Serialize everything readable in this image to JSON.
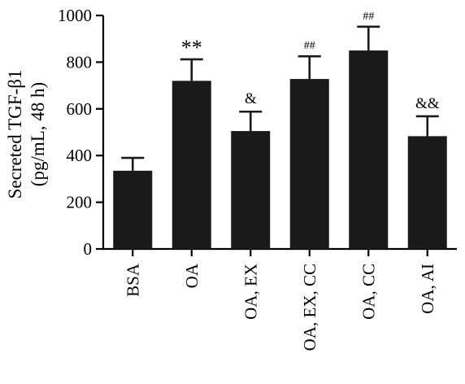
{
  "chart_data": {
    "type": "bar",
    "categories": [
      "BSA",
      "OA",
      "OA, EX",
      "OA, EX, CC",
      "OA, CC",
      "OA, AI"
    ],
    "values": [
      335,
      720,
      505,
      728,
      850,
      483
    ],
    "errors": [
      55,
      92,
      83,
      97,
      102,
      85
    ],
    "annotations": [
      "",
      "**",
      "&",
      "##",
      "##",
      "&&"
    ],
    "ylabel_line1": "Secreted TGF-β1",
    "ylabel_line2": "(pg/mL, 48 h)",
    "ylim": [
      0,
      1000
    ],
    "yticks": [
      0,
      200,
      400,
      600,
      800,
      1000
    ],
    "bar_color": "#1a1a1a",
    "grid": false
  }
}
